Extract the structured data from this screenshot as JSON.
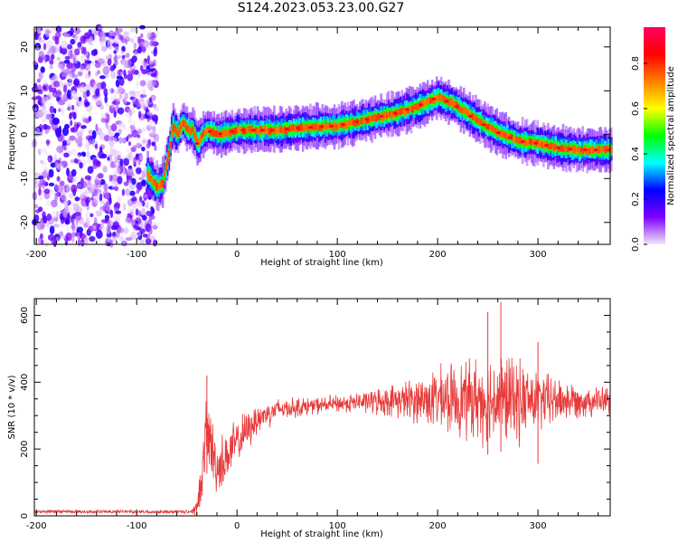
{
  "figure": {
    "title": "S124.2023.053.23.00.G27"
  },
  "chart_data": [
    {
      "type": "heatmap",
      "xlabel": "Height of straight line (km)",
      "ylabel": "Frequency (Hz)",
      "xlim": [
        -202,
        372
      ],
      "ylim": [
        -25,
        24.5
      ],
      "x_ticks": [
        -200,
        -100,
        0,
        100,
        200,
        300
      ],
      "y_ticks": [
        -20,
        -10,
        0,
        10,
        20
      ],
      "colorbar": {
        "label": "Normalized spectral amplitude",
        "range": [
          0,
          0.96
        ],
        "ticks": [
          0.0,
          0.2,
          0.4,
          0.6,
          0.8
        ],
        "colors": [
          "#f2e6fa",
          "#7d00ff",
          "#0000ff",
          "#00ffff",
          "#00ff00",
          "#ffff00",
          "#ff8000",
          "#ff0000",
          "#ff0066"
        ]
      },
      "noise_region_x": [
        -202,
        -80
      ],
      "ridge_points": [
        [
          -90,
          -9
        ],
        [
          -80,
          -12
        ],
        [
          -75,
          -11
        ],
        [
          -68,
          -3
        ],
        [
          -65,
          2
        ],
        [
          -60,
          0
        ],
        [
          -55,
          3
        ],
        [
          -50,
          1
        ],
        [
          -45,
          1
        ],
        [
          -40,
          -2
        ],
        [
          -35,
          0
        ],
        [
          -30,
          1
        ],
        [
          -20,
          0
        ],
        [
          0,
          1
        ],
        [
          40,
          1
        ],
        [
          60,
          1.5
        ],
        [
          100,
          2
        ],
        [
          120,
          3
        ],
        [
          140,
          4
        ],
        [
          160,
          5
        ],
        [
          180,
          6.5
        ],
        [
          200,
          8.5
        ],
        [
          215,
          7
        ],
        [
          240,
          3
        ],
        [
          260,
          0.5
        ],
        [
          280,
          -1.5
        ],
        [
          300,
          -2
        ],
        [
          320,
          -3
        ],
        [
          340,
          -3.5
        ],
        [
          372,
          -3.5
        ]
      ]
    },
    {
      "type": "line",
      "xlabel": "Height of straight line (km)",
      "ylabel": "SNR (10 * v/v)",
      "xlim": [
        -202,
        372
      ],
      "ylim": [
        0,
        650
      ],
      "x_ticks": [
        -200,
        -100,
        0,
        100,
        200,
        300
      ],
      "y_ticks": [
        0,
        200,
        400,
        600
      ],
      "color": "#e83a3a",
      "envelope": [
        [
          -202,
          12,
          12
        ],
        [
          -50,
          14,
          12
        ],
        [
          -40,
          20,
          30
        ],
        [
          -35,
          120,
          80
        ],
        [
          -30,
          260,
          150
        ],
        [
          -20,
          140,
          100
        ],
        [
          -10,
          180,
          100
        ],
        [
          0,
          220,
          80
        ],
        [
          20,
          290,
          60
        ],
        [
          40,
          320,
          40
        ],
        [
          80,
          330,
          30
        ],
        [
          120,
          340,
          35
        ],
        [
          160,
          345,
          60
        ],
        [
          200,
          350,
          110
        ],
        [
          240,
          350,
          150
        ],
        [
          260,
          350,
          170
        ],
        [
          280,
          345,
          150
        ],
        [
          300,
          345,
          110
        ],
        [
          340,
          345,
          60
        ],
        [
          372,
          345,
          50
        ]
      ],
      "notable_points": [
        [
          -30,
          420
        ],
        [
          250,
          610
        ],
        [
          263,
          640
        ],
        [
          300,
          520
        ]
      ]
    }
  ]
}
